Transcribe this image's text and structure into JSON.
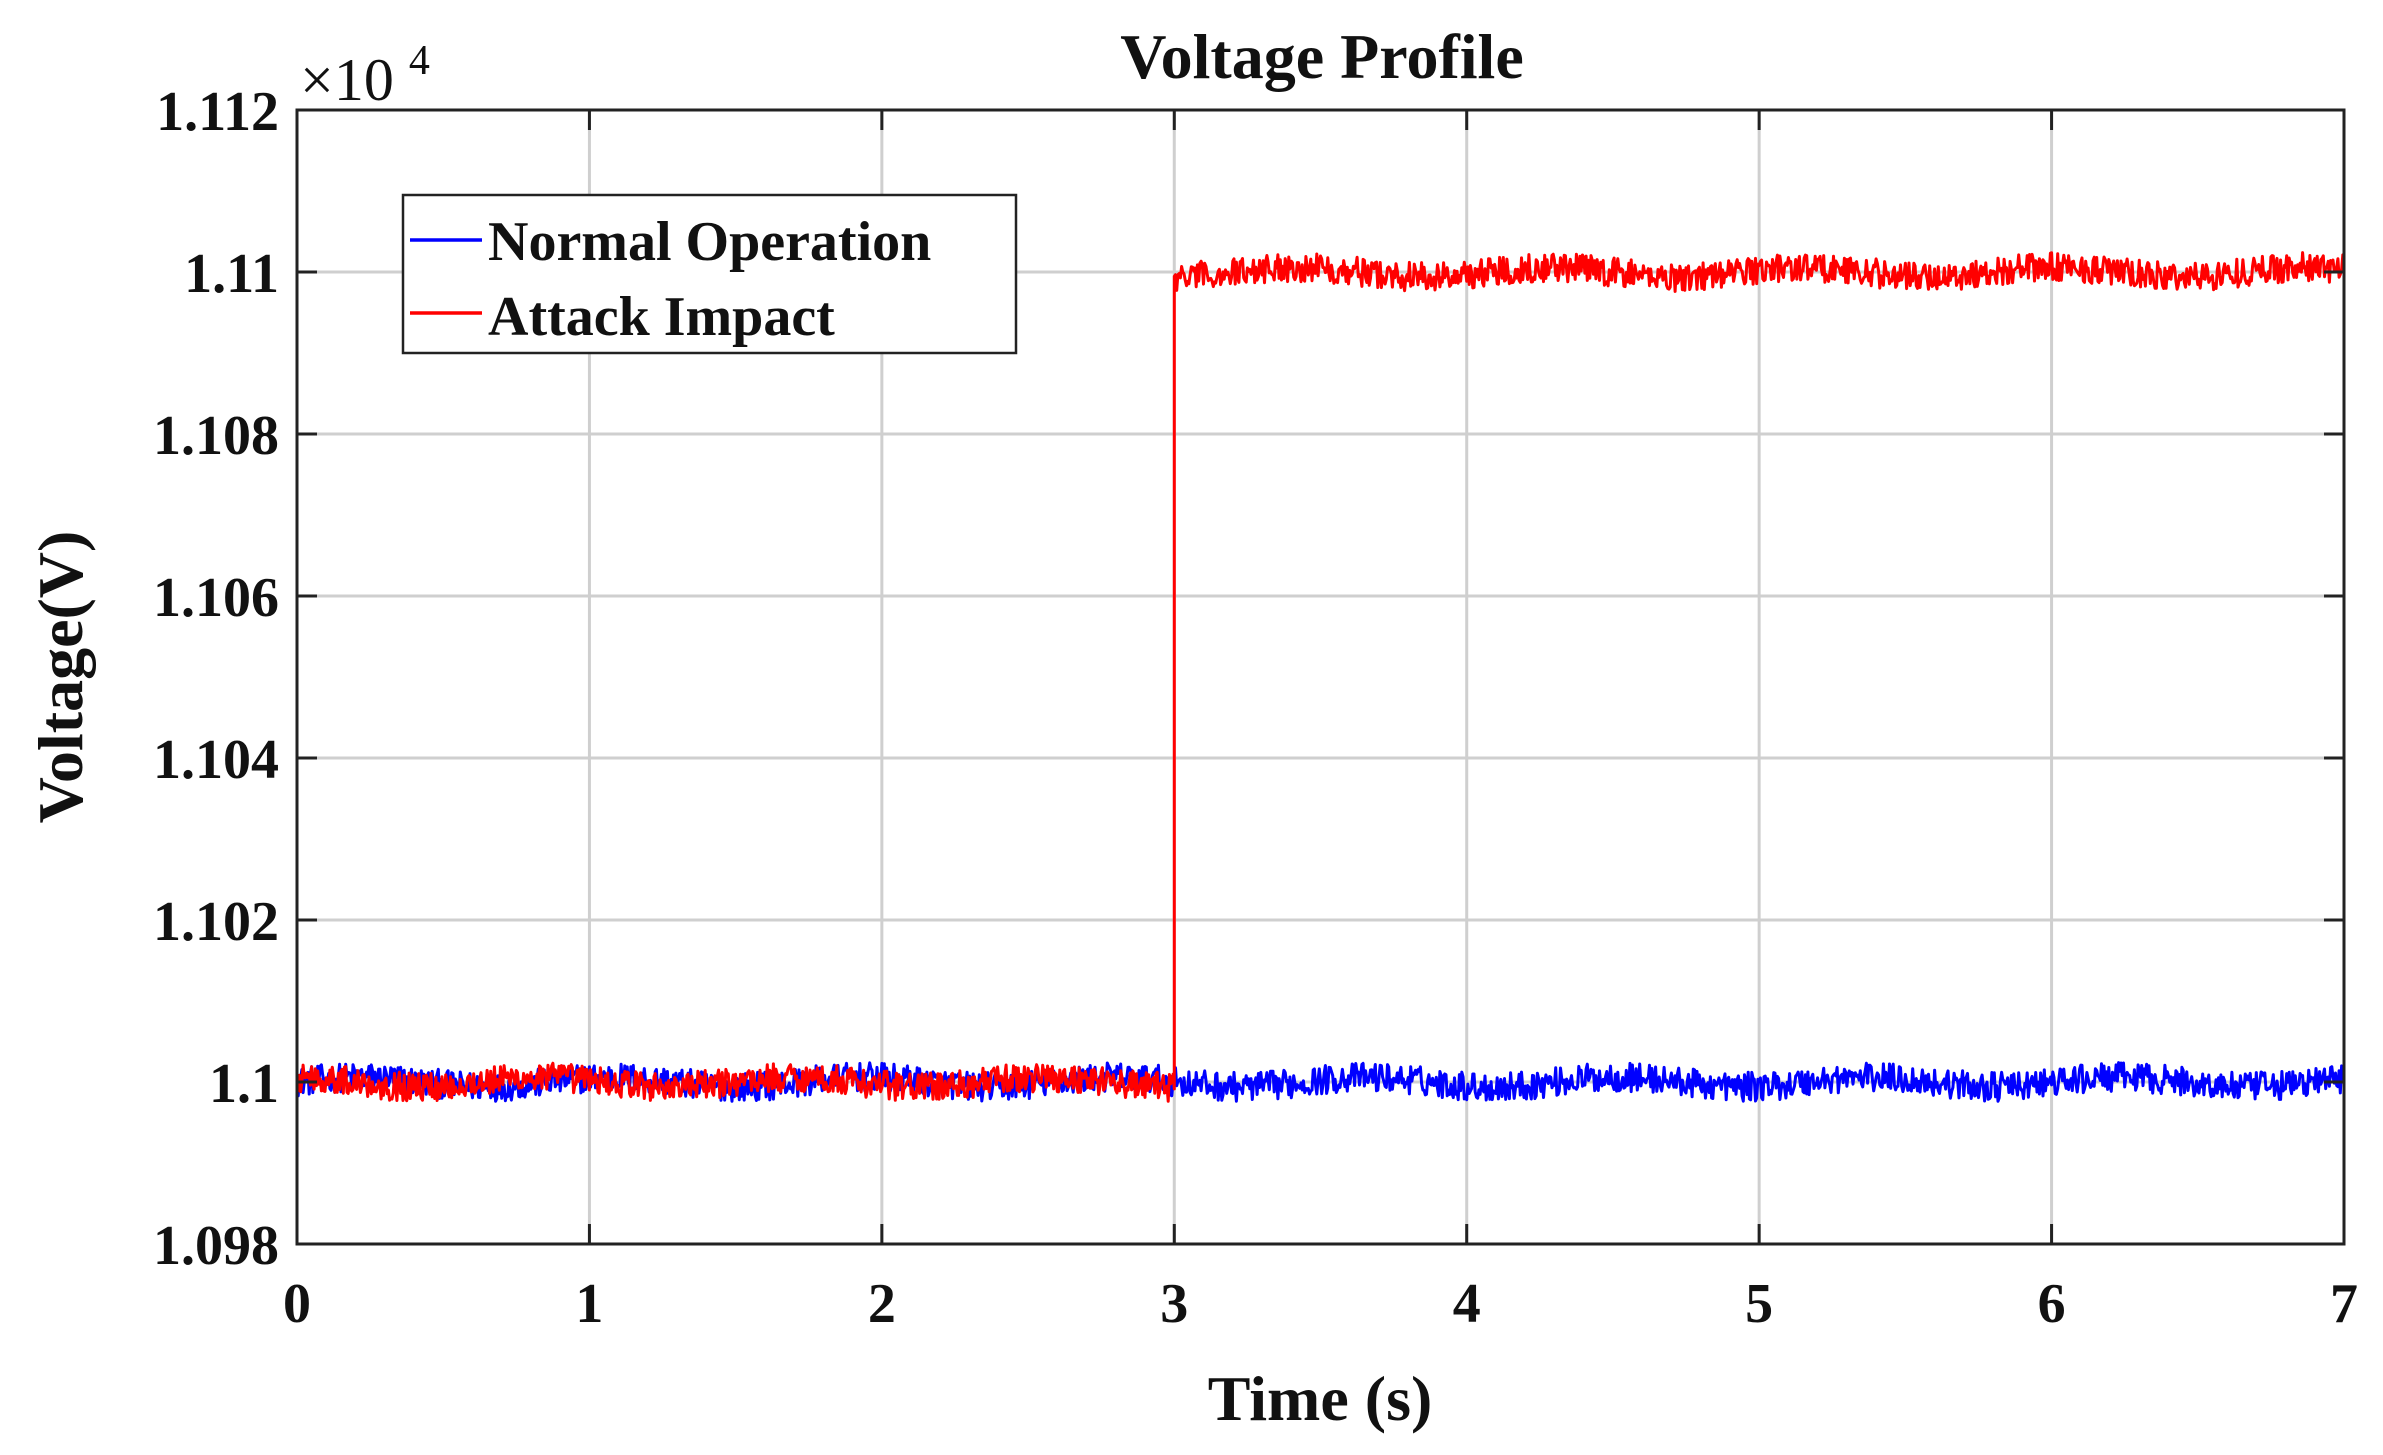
{
  "chart_data": {
    "type": "line",
    "title": "Voltage Profile",
    "xlabel": "Time (s)",
    "ylabel": "Voltage(V)",
    "y_exponent_base": "×10",
    "y_exponent_power": "4",
    "xlim": [
      0,
      7
    ],
    "ylim": [
      1.098,
      1.112
    ],
    "x_ticks": [
      0,
      1,
      2,
      3,
      4,
      5,
      6,
      7
    ],
    "x_tick_labels": [
      "0",
      "1",
      "2",
      "3",
      "4",
      "5",
      "6",
      "7"
    ],
    "y_ticks": [
      1.098,
      1.1,
      1.102,
      1.104,
      1.106,
      1.108,
      1.11,
      1.112
    ],
    "y_tick_labels": [
      "1.098",
      "1.1",
      "1.102",
      "1.104",
      "1.106",
      "1.108",
      "1.11",
      "1.112"
    ],
    "grid": true,
    "legend_position": "top-left",
    "series": [
      {
        "name": "Normal Operation",
        "color": "#0000ff",
        "segments": [
          {
            "x_start": 0,
            "x_end": 7,
            "mean": 1.1,
            "noise_amplitude": 0.0002
          }
        ]
      },
      {
        "name": "Attack Impact",
        "color": "#ff0000",
        "segments": [
          {
            "x_start": 0,
            "x_end": 3,
            "mean": 1.1,
            "noise_amplitude": 0.0002
          },
          {
            "x_start": 3,
            "x_end": 7,
            "mean": 1.11,
            "noise_amplitude": 0.0002
          }
        ]
      }
    ]
  }
}
